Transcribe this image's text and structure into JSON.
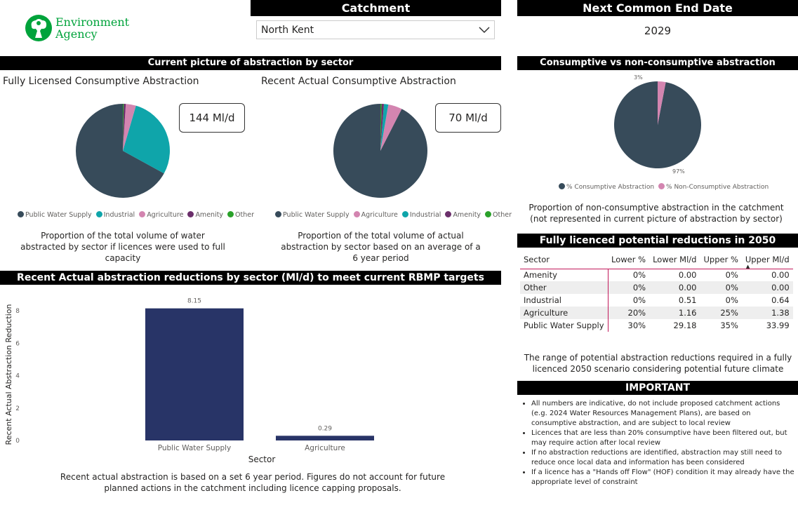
{
  "logo": {
    "line1": "Environment",
    "line2": "Agency"
  },
  "catchment": {
    "title": "Catchment",
    "selected": "North Kent"
  },
  "end_date": {
    "title": "Next Common End Date",
    "value": "2029"
  },
  "sector_section": {
    "title": "Current picture of abstraction by sector"
  },
  "licensed": {
    "title": "Fully Licensed Consumptive Abstraction",
    "kpi": "144 Ml/d",
    "caption": "Proportion of the total volume of water abstracted by sector if licences were used to full capacity"
  },
  "actual": {
    "title": "Recent Actual Consumptive Abstraction",
    "kpi": "70 Ml/d",
    "caption": "Proportion of the total volume of actual abstraction by sector based on an average of a 6 year period"
  },
  "consumptive": {
    "title": "Consumptive vs non-consumptive abstraction",
    "label_small": "3%",
    "label_large": "97%",
    "caption": "Proportion of non-consumptive abstraction in the catchment (not represented in current picture of abstraction by sector)"
  },
  "reductions_chart": {
    "title": "Recent Actual abstraction reductions by sector (Ml/d) to meet current RBMP targets",
    "caption": "Recent actual abstraction is based on a set 6 year period. Figures do not account for future planned actions in the catchment including licence capping proposals."
  },
  "potential": {
    "title": "Fully licenced potential reductions in 2050",
    "columns": [
      "Sector",
      "Lower %",
      "Lower Ml/d",
      "Upper %",
      "Upper Ml/d"
    ],
    "rows": [
      [
        "Amenity",
        "0%",
        "0.00",
        "0%",
        "0.00"
      ],
      [
        "Other",
        "0%",
        "0.00",
        "0%",
        "0.00"
      ],
      [
        "Industrial",
        "0%",
        "0.51",
        "0%",
        "0.64"
      ],
      [
        "Agriculture",
        "20%",
        "1.16",
        "25%",
        "1.38"
      ],
      [
        "Public Water Supply",
        "30%",
        "29.18",
        "35%",
        "33.99"
      ]
    ],
    "caption": "The range of potential abstraction reductions required in a fully licenced 2050 scenario considering potential future climate"
  },
  "important": {
    "title": "IMPORTANT",
    "items": [
      "All numbers are indicative, do not include proposed catchment actions (e.g. 2024 Water Resources Management Plans), are based on consumptive abstraction, and are subject to local review",
      "Licences that are less than 20% consumptive have been filtered out, but may require action after local review",
      "If no abstraction reductions are identified, abstraction may still need to reduce once local data and information has been considered",
      "If a licence has a \"Hands off Flow\" (HOF) condition it may already have the appropriate level of constraint"
    ]
  },
  "chart_data": [
    {
      "type": "pie",
      "title": "Fully Licensed Consumptive Abstraction",
      "labels": [
        "Public Water Supply",
        "Industrial",
        "Agriculture",
        "Amenity",
        "Other"
      ],
      "values": [
        67,
        28.5,
        3.5,
        0.7,
        0.3
      ],
      "colors": [
        "#374b5a",
        "#0fa5aa",
        "#d385b0",
        "#6b2f6b",
        "#2aa12a"
      ],
      "legend": "bottom"
    },
    {
      "type": "pie",
      "title": "Recent Actual Consumptive Abstraction",
      "labels": [
        "Public Water Supply",
        "Agriculture",
        "Industrial",
        "Amenity",
        "Other"
      ],
      "values": [
        92.5,
        4.8,
        1.5,
        0.8,
        0.4
      ],
      "colors": [
        "#374b5a",
        "#d385b0",
        "#0fa5aa",
        "#6b2f6b",
        "#2aa12a"
      ],
      "legend": "bottom"
    },
    {
      "type": "pie",
      "title": "Consumptive vs non-consumptive abstraction",
      "labels": [
        "% Consumptive Abstraction",
        "% Non-Consumptive Abstraction"
      ],
      "values": [
        97,
        3
      ],
      "colors": [
        "#374b5a",
        "#d385b0"
      ],
      "legend": "bottom"
    },
    {
      "type": "bar",
      "title": "Recent Actual abstraction reductions by sector (Ml/d) to meet current RBMP targets",
      "categories": [
        "Public Water Supply",
        "Agriculture"
      ],
      "values": [
        8.15,
        0.29
      ],
      "value_labels": [
        "8.15",
        "0.29"
      ],
      "xlabel": "Sector",
      "ylabel": "Recent Actual Abstraction Reduction",
      "ylim": [
        0,
        9
      ],
      "yticks": [
        "0",
        "2",
        "4",
        "6",
        "8"
      ],
      "color": "#283467"
    }
  ]
}
